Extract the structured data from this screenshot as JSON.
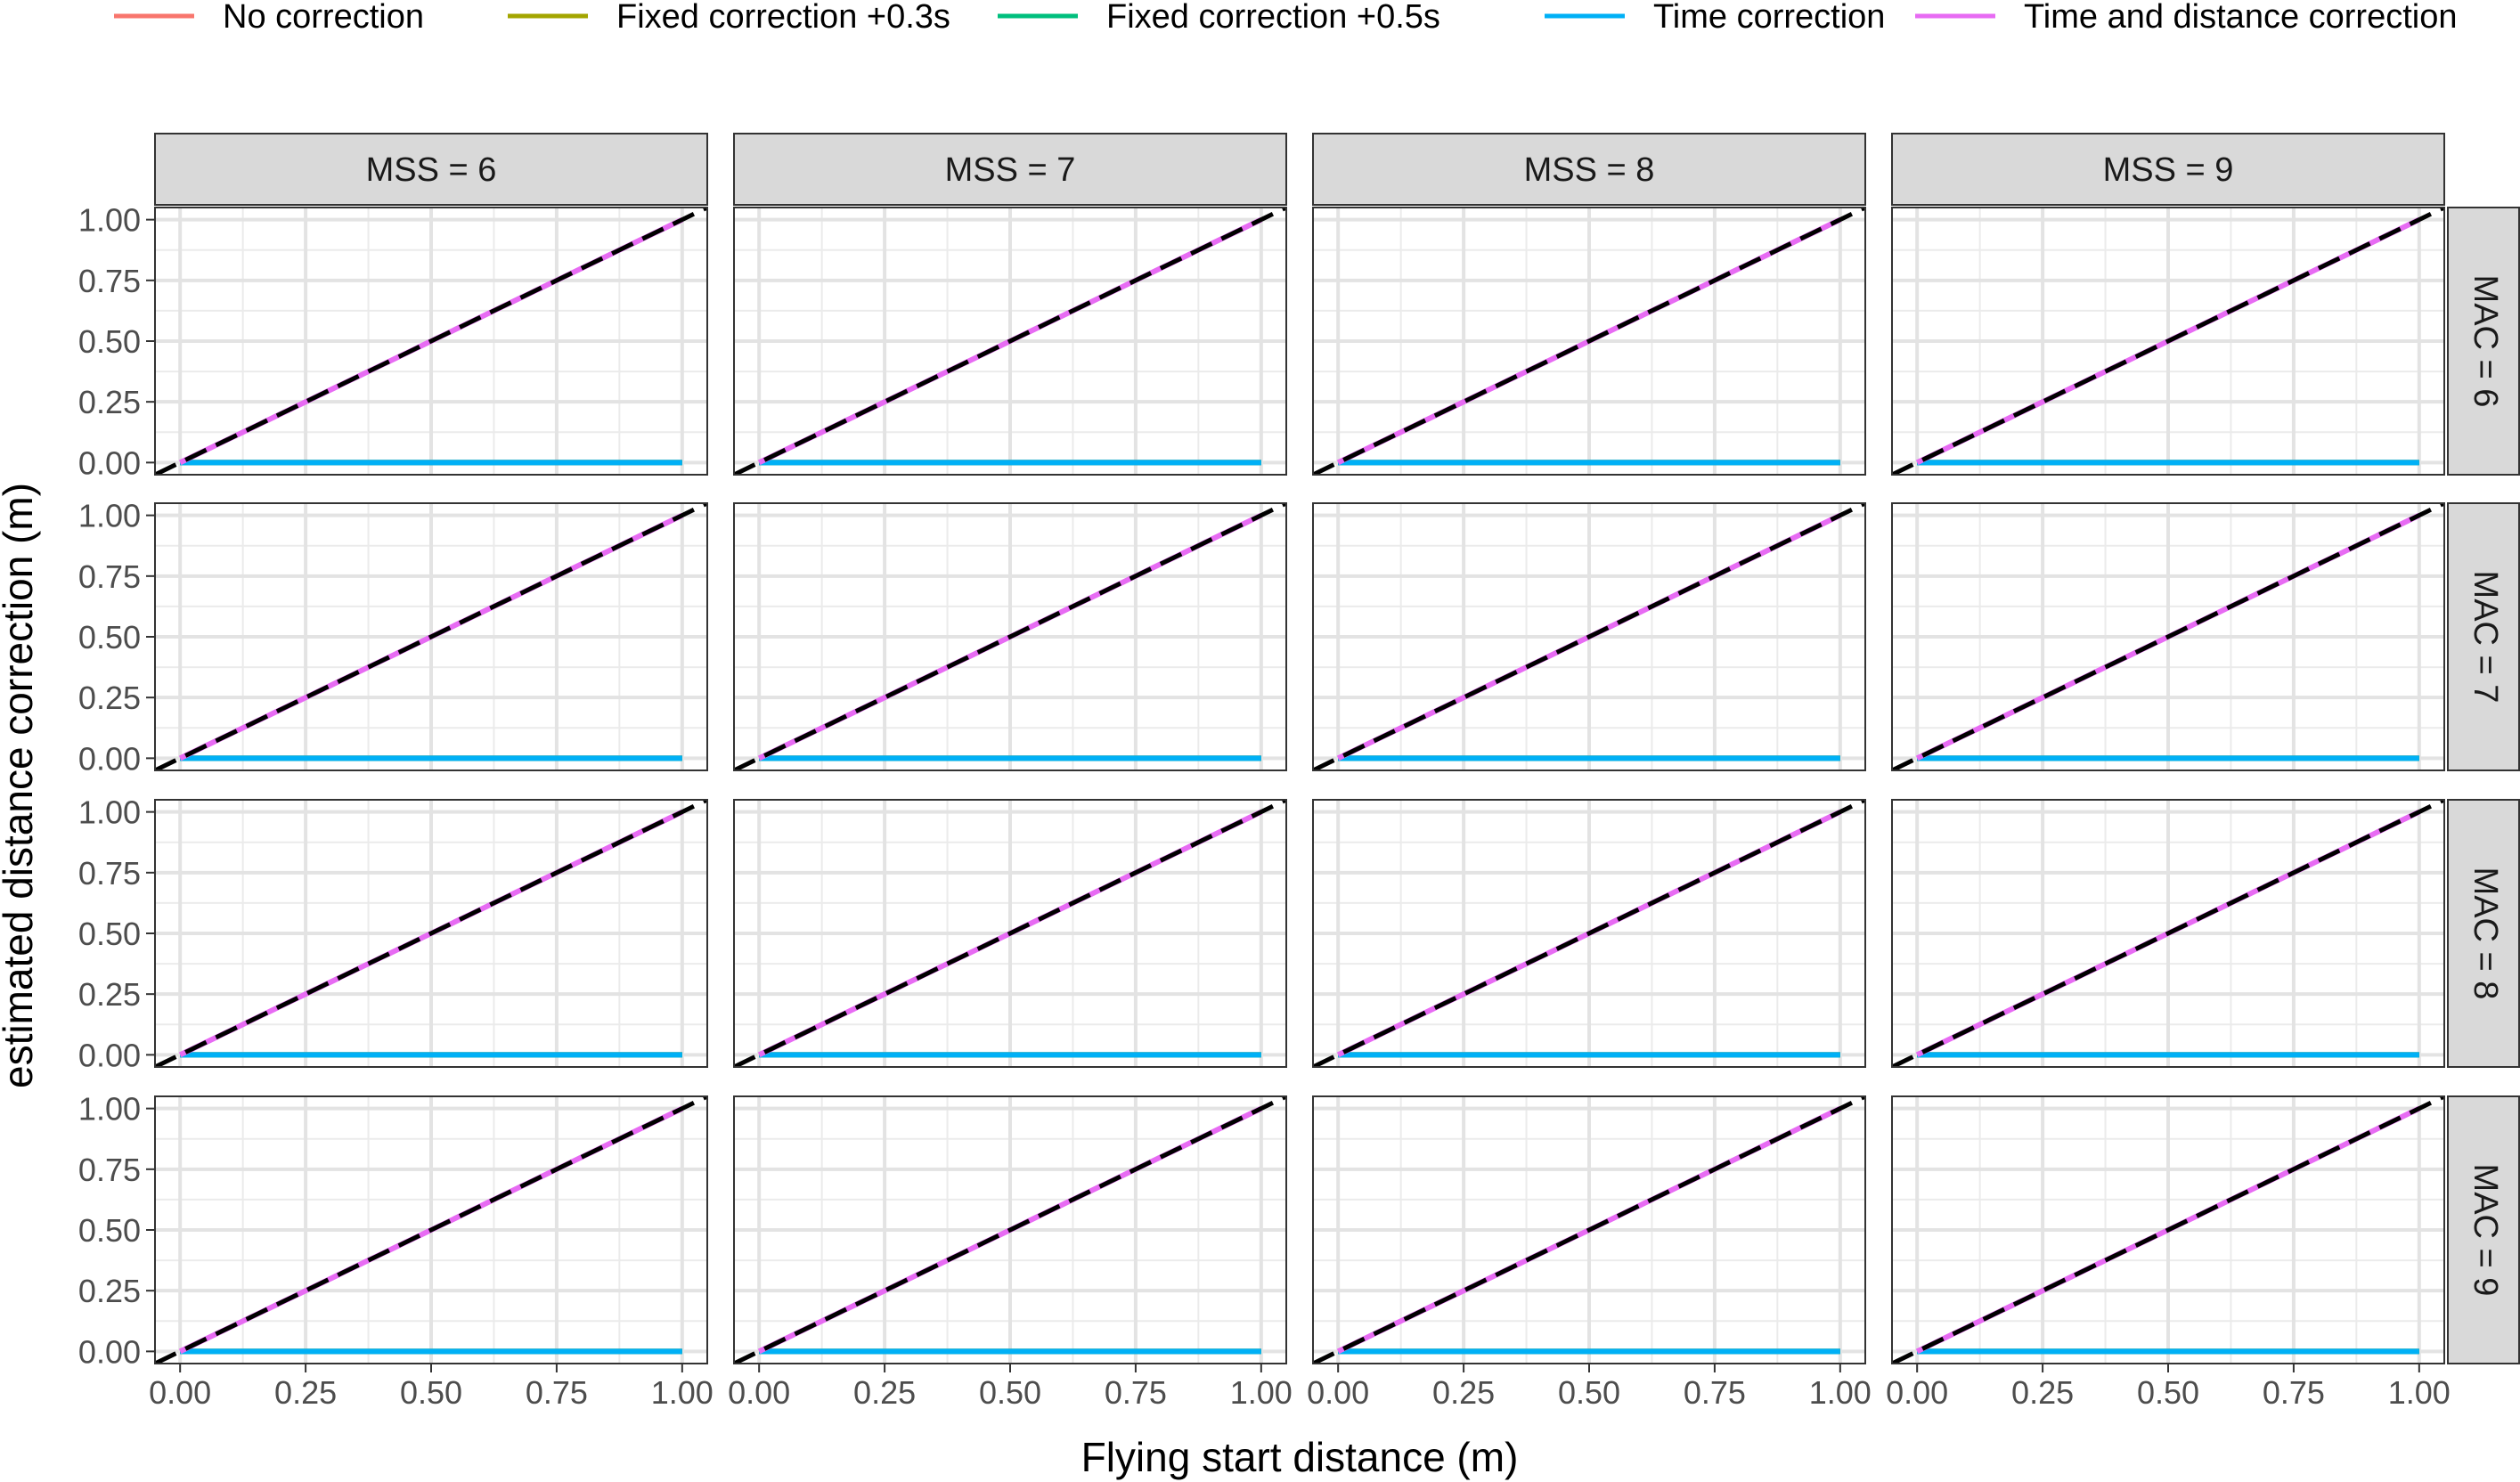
{
  "chart_data": {
    "type": "line",
    "xlabel": "Flying start distance (m)",
    "ylabel": "estimated distance correction (m)",
    "xlim": [
      -0.05,
      1.05
    ],
    "ylim": [
      -0.05,
      1.05
    ],
    "x_ticks": [
      "0.00",
      "0.25",
      "0.50",
      "0.75",
      "1.00"
    ],
    "y_ticks": [
      "0.00",
      "0.25",
      "0.50",
      "0.75",
      "1.00"
    ],
    "grid": true,
    "legend_position": "top",
    "facet_cols": {
      "labels": [
        "MSS = 6",
        "MSS = 7",
        "MSS = 8",
        "MSS = 9"
      ]
    },
    "facet_rows": {
      "labels": [
        "MAC = 6",
        "MAC = 7",
        "MAC = 8",
        "MAC = 9"
      ]
    },
    "series": [
      {
        "name": "No correction",
        "color": "#F8766D",
        "x": [
          0,
          1
        ],
        "y": [
          0,
          0
        ]
      },
      {
        "name": "Fixed correction +0.3s",
        "color": "#A3A500",
        "x": [
          0,
          1
        ],
        "y": [
          0,
          0
        ]
      },
      {
        "name": "Fixed correction +0.5s",
        "color": "#00BF7D",
        "x": [
          0,
          1
        ],
        "y": [
          0,
          0
        ]
      },
      {
        "name": "Time correction",
        "color": "#00B0F6",
        "x": [
          0,
          1
        ],
        "y": [
          0,
          0
        ]
      },
      {
        "name": "Time and distance correction",
        "color": "#E76BF3",
        "x": [
          0,
          1
        ],
        "y": [
          0,
          1
        ]
      }
    ],
    "reference_line": {
      "style": "dashed",
      "color": "#000000",
      "x": [
        -0.05,
        1.05
      ],
      "y": [
        -0.05,
        1.05
      ]
    }
  }
}
